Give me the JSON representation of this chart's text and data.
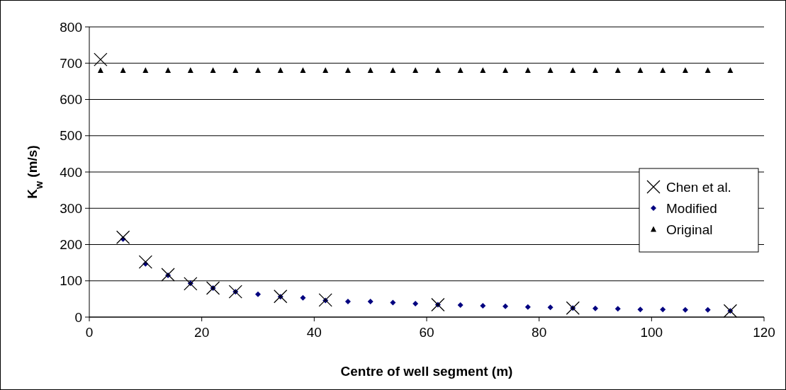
{
  "chart_data": {
    "type": "scatter",
    "xlabel": "Centre of well segment (m)",
    "ylabel": "K$_{w}$ (m/s)",
    "xlim": [
      0,
      120
    ],
    "xticks": [
      0,
      20,
      40,
      60,
      80,
      100,
      120
    ],
    "ylim": [
      0,
      800
    ],
    "yticks": [
      0,
      100,
      200,
      300,
      400,
      500,
      600,
      700,
      800
    ],
    "grid": "y",
    "legend": "right",
    "series": [
      {
        "name": "Chen et al.",
        "color": "#000000",
        "marker": "cross",
        "x": [
          2,
          6,
          10,
          14,
          18,
          22,
          26,
          34,
          42,
          62,
          86,
          114
        ],
        "values": [
          710,
          220,
          152,
          117,
          92,
          80,
          70,
          57,
          47,
          34,
          25,
          17
        ]
      },
      {
        "name": "Modified",
        "color": "#000080",
        "marker": "diamond",
        "x": [
          6,
          10,
          14,
          18,
          22,
          26,
          30,
          34,
          38,
          42,
          46,
          50,
          54,
          58,
          62,
          66,
          70,
          74,
          78,
          82,
          86,
          90,
          94,
          98,
          102,
          106,
          110,
          114
        ],
        "values": [
          215,
          147,
          115,
          93,
          80,
          70,
          63,
          56,
          53,
          46,
          43,
          43,
          40,
          37,
          34,
          33,
          31,
          30,
          28,
          27,
          25,
          24,
          23,
          21,
          21,
          20,
          20,
          17
        ]
      },
      {
        "name": "Original",
        "color": "#000000",
        "marker": "triangle",
        "x": [
          2,
          6,
          10,
          14,
          18,
          22,
          26,
          30,
          34,
          38,
          42,
          46,
          50,
          54,
          58,
          62,
          66,
          70,
          74,
          78,
          82,
          86,
          90,
          94,
          98,
          102,
          106,
          110,
          114
        ],
        "values": [
          680,
          680,
          680,
          680,
          680,
          680,
          680,
          680,
          680,
          680,
          680,
          680,
          680,
          680,
          680,
          680,
          680,
          680,
          680,
          680,
          680,
          680,
          680,
          680,
          680,
          680,
          680,
          680,
          680
        ]
      }
    ]
  }
}
